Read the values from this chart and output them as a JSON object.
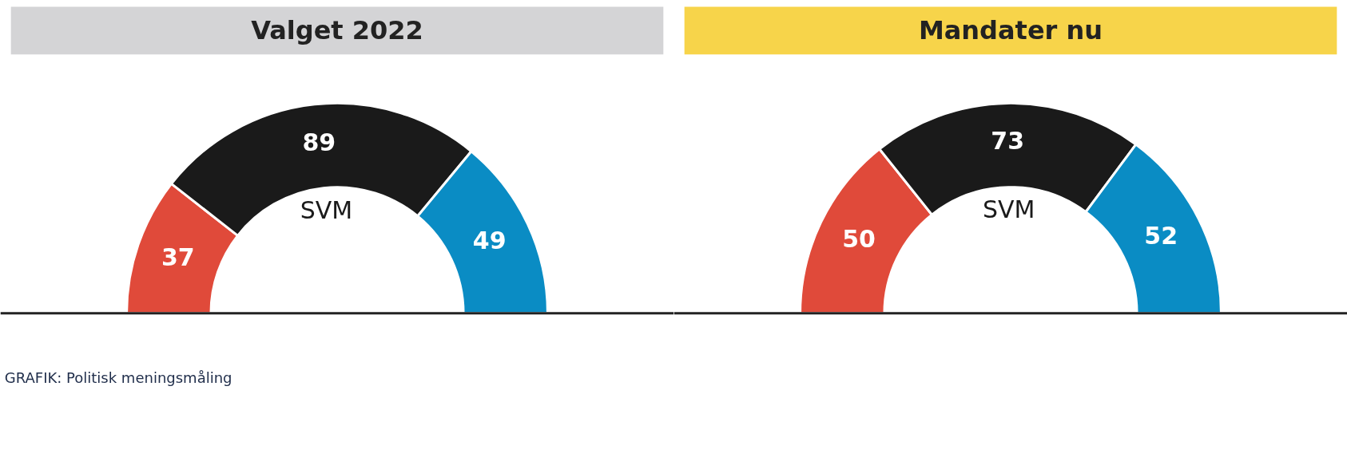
{
  "chart_data": [
    {
      "type": "donut",
      "title": "Valget 2022",
      "categories": [
        null,
        "SVM",
        null
      ],
      "values": [
        37,
        89,
        49
      ],
      "colors": [
        "#e04a3a",
        "#1a1a1a",
        "#0a8cc4"
      ],
      "data_labels": true,
      "annotations": [
        "GRAFIK: Politisk meningsmåling"
      ]
    },
    {
      "type": "donut",
      "title": "Mandater nu",
      "categories": [
        null,
        "SVM",
        null
      ],
      "values": [
        50,
        73,
        52
      ],
      "colors": [
        "#e04a3a",
        "#1a1a1a",
        "#0a8cc4"
      ],
      "data_labels": true
    }
  ]
}
